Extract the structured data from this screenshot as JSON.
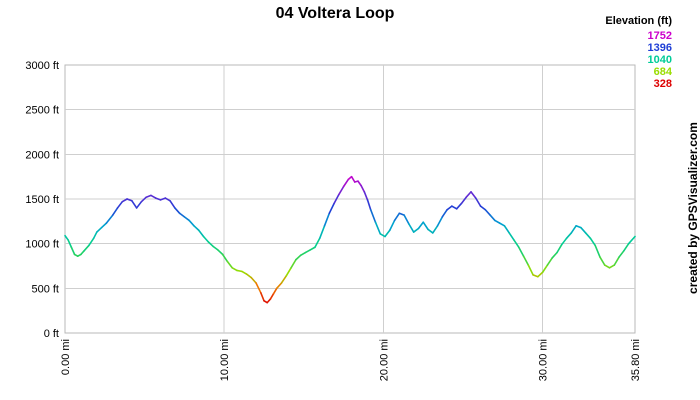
{
  "chart_data": {
    "type": "line",
    "title": "04 Voltera Loop",
    "xlabel": "",
    "ylabel": "",
    "xlim": [
      0,
      35.8
    ],
    "ylim": [
      0,
      3000
    ],
    "x_ticks": [
      0,
      10,
      20,
      30,
      35.8
    ],
    "x_tick_labels": [
      "0.00 mi",
      "10.00 mi",
      "20.00 mi",
      "30.00 mi",
      "35.80 mi"
    ],
    "y_ticks": [
      0,
      500,
      1000,
      1500,
      2000,
      2500,
      3000
    ],
    "y_tick_labels": [
      "0 ft",
      "500 ft",
      "1000 ft",
      "1500 ft",
      "2000 ft",
      "2500 ft",
      "3000 ft"
    ],
    "grid": true,
    "legend": {
      "title": "Elevation (ft)",
      "position": "top-right",
      "entries": [
        {
          "label": "1752",
          "color": "#cc00cc"
        },
        {
          "label": "1396",
          "color": "#1f3fd6"
        },
        {
          "label": "1040",
          "color": "#00cc99"
        },
        {
          "label": "684",
          "color": "#99dd00"
        },
        {
          "label": "328",
          "color": "#dd0000"
        }
      ]
    },
    "credit": "created by GPSVisualizer.com",
    "series": [
      {
        "x": [
          0,
          0.2,
          0.4,
          0.6,
          0.8,
          1.0,
          1.2,
          1.5,
          1.8,
          2.0,
          2.3,
          2.6,
          3.0,
          3.3,
          3.6,
          3.9,
          4.2,
          4.5,
          4.8,
          5.1,
          5.4,
          5.7,
          6.0,
          6.3,
          6.6,
          6.9,
          7.2,
          7.5,
          7.8,
          8.1,
          8.4,
          8.7,
          9.0,
          9.3,
          9.6,
          9.9,
          10.2,
          10.5,
          10.8,
          11.1,
          11.4,
          11.7,
          12.0,
          12.3,
          12.5,
          12.7,
          12.9,
          13.1,
          13.3,
          13.6,
          13.9,
          14.2,
          14.5,
          14.8,
          15.1,
          15.4,
          15.7,
          16.0,
          16.3,
          16.6,
          16.9,
          17.2,
          17.5,
          17.8,
          18.0,
          18.2,
          18.4,
          18.6,
          18.8,
          19.0,
          19.2,
          19.5,
          19.8,
          20.1,
          20.4,
          20.7,
          21.0,
          21.3,
          21.6,
          21.9,
          22.2,
          22.5,
          22.8,
          23.1,
          23.4,
          23.7,
          24.0,
          24.3,
          24.6,
          24.9,
          25.2,
          25.5,
          25.8,
          26.1,
          26.4,
          26.7,
          27.0,
          27.3,
          27.6,
          27.9,
          28.2,
          28.5,
          28.8,
          29.1,
          29.4,
          29.7,
          30.0,
          30.3,
          30.6,
          30.9,
          31.2,
          31.5,
          31.8,
          32.1,
          32.4,
          32.7,
          33.0,
          33.3,
          33.6,
          33.9,
          34.2,
          34.5,
          34.8,
          35.1,
          35.4,
          35.8
        ],
        "y": [
          1090,
          1040,
          960,
          880,
          860,
          880,
          920,
          980,
          1060,
          1130,
          1180,
          1230,
          1320,
          1400,
          1470,
          1500,
          1480,
          1400,
          1470,
          1520,
          1540,
          1510,
          1490,
          1510,
          1480,
          1400,
          1340,
          1300,
          1260,
          1200,
          1150,
          1080,
          1020,
          970,
          930,
          880,
          800,
          730,
          700,
          690,
          660,
          620,
          560,
          450,
          360,
          340,
          380,
          440,
          500,
          560,
          640,
          730,
          820,
          870,
          900,
          930,
          960,
          1060,
          1200,
          1340,
          1450,
          1550,
          1640,
          1720,
          1750,
          1690,
          1700,
          1650,
          1580,
          1490,
          1380,
          1240,
          1110,
          1080,
          1150,
          1260,
          1340,
          1320,
          1220,
          1130,
          1170,
          1240,
          1160,
          1120,
          1200,
          1300,
          1380,
          1420,
          1390,
          1450,
          1520,
          1580,
          1510,
          1420,
          1380,
          1320,
          1260,
          1230,
          1200,
          1120,
          1040,
          960,
          860,
          760,
          650,
          630,
          680,
          760,
          840,
          900,
          990,
          1060,
          1120,
          1200,
          1180,
          1120,
          1060,
          980,
          850,
          760,
          730,
          760,
          850,
          920,
          1000,
          1080
        ]
      }
    ]
  }
}
